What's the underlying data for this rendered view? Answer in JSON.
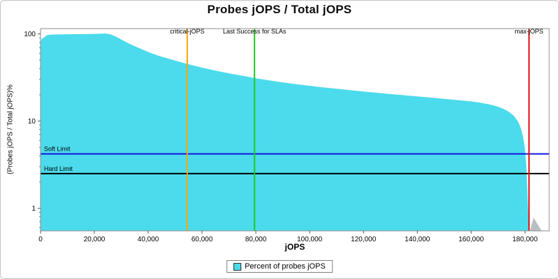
{
  "title": "Probes jOPS / Total jOPS",
  "axes": {
    "x": {
      "label": "jOPS",
      "min": 0,
      "max": 189000,
      "ticks": [
        0,
        20000,
        40000,
        60000,
        80000,
        100000,
        120000,
        140000,
        160000,
        180000
      ]
    },
    "y": {
      "label": "(Probes jOPS / Total jOPS)%",
      "scale": "log",
      "min": 0.55,
      "max": 115,
      "ticks": [
        100,
        10,
        1
      ]
    }
  },
  "chart_data": {
    "type": "area",
    "x_unit": "jOPS",
    "y_unit": "percent",
    "series": [
      {
        "name": "Percent of probes jOPS",
        "color": "#4bdbec",
        "points": [
          [
            0,
            78
          ],
          [
            400,
            88
          ],
          [
            1200,
            90
          ],
          [
            2200,
            96
          ],
          [
            3500,
            98
          ],
          [
            6000,
            98.5
          ],
          [
            10000,
            99
          ],
          [
            15000,
            99.5
          ],
          [
            20000,
            100
          ],
          [
            24000,
            101
          ],
          [
            26000,
            99
          ],
          [
            28000,
            93
          ],
          [
            30000,
            86
          ],
          [
            33000,
            77
          ],
          [
            36000,
            70
          ],
          [
            40000,
            62
          ],
          [
            44000,
            56
          ],
          [
            48000,
            51.5
          ],
          [
            52000,
            47.5
          ],
          [
            56000,
            44
          ],
          [
            60000,
            41
          ],
          [
            64000,
            38.5
          ],
          [
            68000,
            36.3
          ],
          [
            72000,
            34.4
          ],
          [
            76000,
            32.7
          ],
          [
            80000,
            31
          ],
          [
            85000,
            29.3
          ],
          [
            90000,
            27.8
          ],
          [
            95000,
            26.5
          ],
          [
            100000,
            25.4
          ],
          [
            105000,
            24.4
          ],
          [
            110000,
            23.5
          ],
          [
            115000,
            22.6
          ],
          [
            120000,
            21.8
          ],
          [
            125000,
            21.1
          ],
          [
            130000,
            20.4
          ],
          [
            135000,
            19.8
          ],
          [
            140000,
            19.2
          ],
          [
            145000,
            18.6
          ],
          [
            150000,
            18
          ],
          [
            155000,
            17.4
          ],
          [
            160000,
            16.8
          ],
          [
            163000,
            16.3
          ],
          [
            166000,
            15.7
          ],
          [
            168000,
            15.2
          ],
          [
            170000,
            14.6
          ],
          [
            172000,
            13.8
          ],
          [
            174000,
            12.8
          ],
          [
            176000,
            11.4
          ],
          [
            177500,
            9.8
          ],
          [
            178500,
            8.2
          ],
          [
            179300,
            6.6
          ],
          [
            180000,
            4.8
          ],
          [
            180500,
            3
          ],
          [
            180900,
            1.6
          ],
          [
            181200,
            0.9
          ],
          [
            181500,
            0.62
          ]
        ]
      }
    ],
    "tail": {
      "name": "post-max-tail",
      "color": "#b9bec4",
      "points": [
        [
          181800,
          0.55
        ],
        [
          183200,
          0.78
        ],
        [
          186200,
          0.55
        ]
      ]
    },
    "markers": {
      "vertical": [
        {
          "label": "critical-jOPS",
          "x": 54500,
          "color": "#ffa500"
        },
        {
          "label": "Last Success for SLAs",
          "x": 79500,
          "color": "#1fc81f"
        },
        {
          "label": "max-jOPS",
          "x": 181500,
          "color": "#e01414"
        }
      ],
      "horizontal": [
        {
          "label": "Soft Limit",
          "y": 4.2,
          "color": "#1414e0"
        },
        {
          "label": "Hard Limit",
          "y": 2.5,
          "color": "#000000"
        }
      ]
    }
  },
  "legend": {
    "entries": [
      {
        "label": "Percent of probes jOPS",
        "color": "#4bdbec"
      }
    ]
  }
}
